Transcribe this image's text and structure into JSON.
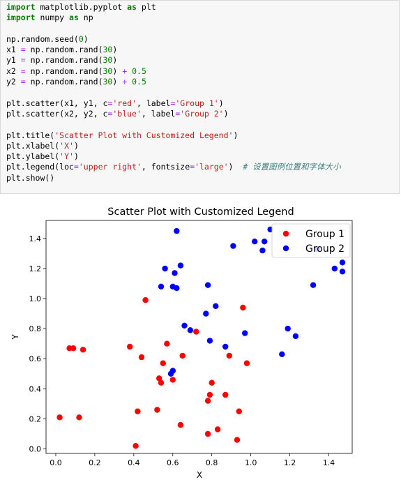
{
  "code_lines": [
    [
      {
        "t": "kw",
        "v": "import"
      },
      {
        "t": "txt",
        "v": " matplotlib.pyplot "
      },
      {
        "t": "kw",
        "v": "as"
      },
      {
        "t": "txt",
        "v": " plt"
      }
    ],
    [
      {
        "t": "kw",
        "v": "import"
      },
      {
        "t": "txt",
        "v": " numpy "
      },
      {
        "t": "kw",
        "v": "as"
      },
      {
        "t": "txt",
        "v": " np"
      }
    ],
    [],
    [
      {
        "t": "txt",
        "v": "np.random.seed("
      },
      {
        "t": "num",
        "v": "0"
      },
      {
        "t": "txt",
        "v": ")"
      }
    ],
    [
      {
        "t": "txt",
        "v": "x1 "
      },
      {
        "t": "op",
        "v": "="
      },
      {
        "t": "txt",
        "v": " np.random.rand("
      },
      {
        "t": "num",
        "v": "30"
      },
      {
        "t": "txt",
        "v": ")"
      }
    ],
    [
      {
        "t": "txt",
        "v": "y1 "
      },
      {
        "t": "op",
        "v": "="
      },
      {
        "t": "txt",
        "v": " np.random.rand("
      },
      {
        "t": "num",
        "v": "30"
      },
      {
        "t": "txt",
        "v": ")"
      }
    ],
    [
      {
        "t": "txt",
        "v": "x2 "
      },
      {
        "t": "op",
        "v": "="
      },
      {
        "t": "txt",
        "v": " np.random.rand("
      },
      {
        "t": "num",
        "v": "30"
      },
      {
        "t": "txt",
        "v": ") "
      },
      {
        "t": "op",
        "v": "+"
      },
      {
        "t": "txt",
        "v": " "
      },
      {
        "t": "num",
        "v": "0.5"
      }
    ],
    [
      {
        "t": "txt",
        "v": "y2 "
      },
      {
        "t": "op",
        "v": "="
      },
      {
        "t": "txt",
        "v": " np.random.rand("
      },
      {
        "t": "num",
        "v": "30"
      },
      {
        "t": "txt",
        "v": ") "
      },
      {
        "t": "op",
        "v": "+"
      },
      {
        "t": "txt",
        "v": " "
      },
      {
        "t": "num",
        "v": "0.5"
      }
    ],
    [],
    [
      {
        "t": "txt",
        "v": "plt.scatter(x1, y1, c"
      },
      {
        "t": "op",
        "v": "="
      },
      {
        "t": "str",
        "v": "'red'"
      },
      {
        "t": "txt",
        "v": ", label"
      },
      {
        "t": "op",
        "v": "="
      },
      {
        "t": "str",
        "v": "'Group 1'"
      },
      {
        "t": "txt",
        "v": ")"
      }
    ],
    [
      {
        "t": "txt",
        "v": "plt.scatter(x2, y2, c"
      },
      {
        "t": "op",
        "v": "="
      },
      {
        "t": "str",
        "v": "'blue'"
      },
      {
        "t": "txt",
        "v": ", label"
      },
      {
        "t": "op",
        "v": "="
      },
      {
        "t": "str",
        "v": "'Group 2'"
      },
      {
        "t": "txt",
        "v": ")"
      }
    ],
    [],
    [
      {
        "t": "txt",
        "v": "plt.title("
      },
      {
        "t": "str",
        "v": "'Scatter Plot with Customized Legend'"
      },
      {
        "t": "txt",
        "v": ")"
      }
    ],
    [
      {
        "t": "txt",
        "v": "plt.xlabel("
      },
      {
        "t": "str",
        "v": "'X'"
      },
      {
        "t": "txt",
        "v": ")"
      }
    ],
    [
      {
        "t": "txt",
        "v": "plt.ylabel("
      },
      {
        "t": "str",
        "v": "'Y'"
      },
      {
        "t": "txt",
        "v": ")"
      }
    ],
    [
      {
        "t": "txt",
        "v": "plt.legend(loc"
      },
      {
        "t": "op",
        "v": "="
      },
      {
        "t": "str",
        "v": "'upper right'"
      },
      {
        "t": "txt",
        "v": ", fontsize"
      },
      {
        "t": "op",
        "v": "="
      },
      {
        "t": "str",
        "v": "'large'"
      },
      {
        "t": "txt",
        "v": ")  "
      },
      {
        "t": "cm",
        "v": "# 设置图例位置和字体大小"
      }
    ],
    [
      {
        "t": "txt",
        "v": "plt.show()"
      }
    ]
  ],
  "chart_data": {
    "type": "scatter",
    "title": "Scatter Plot with Customized Legend",
    "xlabel": "X",
    "ylabel": "Y",
    "xlim": [
      -0.05,
      1.52
    ],
    "ylim": [
      -0.03,
      1.52
    ],
    "xticks": [
      0.0,
      0.2,
      0.4,
      0.6,
      0.8,
      1.0,
      1.2,
      1.4
    ],
    "xtick_labels": [
      "0.0",
      "0.2",
      "0.4",
      "0.6",
      "0.8",
      "1.0",
      "1.2",
      "1.4"
    ],
    "yticks": [
      0.0,
      0.2,
      0.4,
      0.6,
      0.8,
      1.0,
      1.2,
      1.4
    ],
    "ytick_labels": [
      "0.0",
      "0.2",
      "0.4",
      "0.6",
      "0.8",
      "1.0",
      "1.2",
      "1.4"
    ],
    "grid": false,
    "legend_position": "upper right",
    "series": [
      {
        "name": "Group 1",
        "color": "#ff0000",
        "points": [
          [
            0.55,
            0.57
          ],
          [
            0.72,
            0.78
          ],
          [
            0.6,
            0.46
          ],
          [
            0.54,
            0.44
          ],
          [
            0.42,
            0.25
          ],
          [
            0.65,
            0.62
          ],
          [
            0.44,
            0.61
          ],
          [
            0.89,
            0.62
          ],
          [
            0.96,
            0.94
          ],
          [
            0.38,
            0.68
          ],
          [
            0.79,
            0.36
          ],
          [
            0.53,
            0.47
          ],
          [
            0.57,
            0.7
          ],
          [
            0.93,
            0.06
          ],
          [
            0.07,
            0.67
          ],
          [
            0.09,
            0.67
          ],
          [
            0.02,
            0.21
          ],
          [
            0.83,
            0.13
          ],
          [
            0.78,
            0.32
          ],
          [
            0.87,
            0.36
          ],
          [
            0.98,
            0.57
          ],
          [
            0.8,
            0.44
          ],
          [
            0.46,
            0.99
          ],
          [
            0.78,
            0.1
          ],
          [
            0.12,
            0.21
          ],
          [
            0.64,
            0.16
          ],
          [
            0.14,
            0.66
          ],
          [
            0.94,
            0.25
          ],
          [
            0.52,
            0.26
          ],
          [
            0.41,
            0.02
          ]
        ]
      },
      {
        "name": "Group 2",
        "color": "#0000ff",
        "points": [
          [
            0.62,
            1.45
          ],
          [
            0.61,
            1.17
          ],
          [
            0.64,
            1.22
          ],
          [
            0.56,
            1.2
          ],
          [
            0.54,
            1.08
          ],
          [
            0.6,
            1.08
          ],
          [
            0.62,
            1.07
          ],
          [
            0.78,
            1.09
          ],
          [
            0.77,
            0.9
          ],
          [
            0.82,
            0.95
          ],
          [
            0.66,
            0.82
          ],
          [
            0.69,
            0.79
          ],
          [
            0.79,
            0.72
          ],
          [
            0.87,
            0.68
          ],
          [
            0.97,
            0.77
          ],
          [
            0.6,
            0.52
          ],
          [
            0.59,
            0.5
          ],
          [
            0.91,
            1.35
          ],
          [
            1.02,
            1.38
          ],
          [
            1.07,
            1.38
          ],
          [
            1.06,
            1.32
          ],
          [
            1.1,
            1.46
          ],
          [
            1.16,
            0.63
          ],
          [
            1.19,
            0.8
          ],
          [
            1.23,
            0.75
          ],
          [
            1.32,
            1.09
          ],
          [
            1.34,
            1.33
          ],
          [
            1.43,
            1.2
          ],
          [
            1.47,
            1.24
          ],
          [
            1.47,
            1.18
          ]
        ]
      }
    ]
  }
}
